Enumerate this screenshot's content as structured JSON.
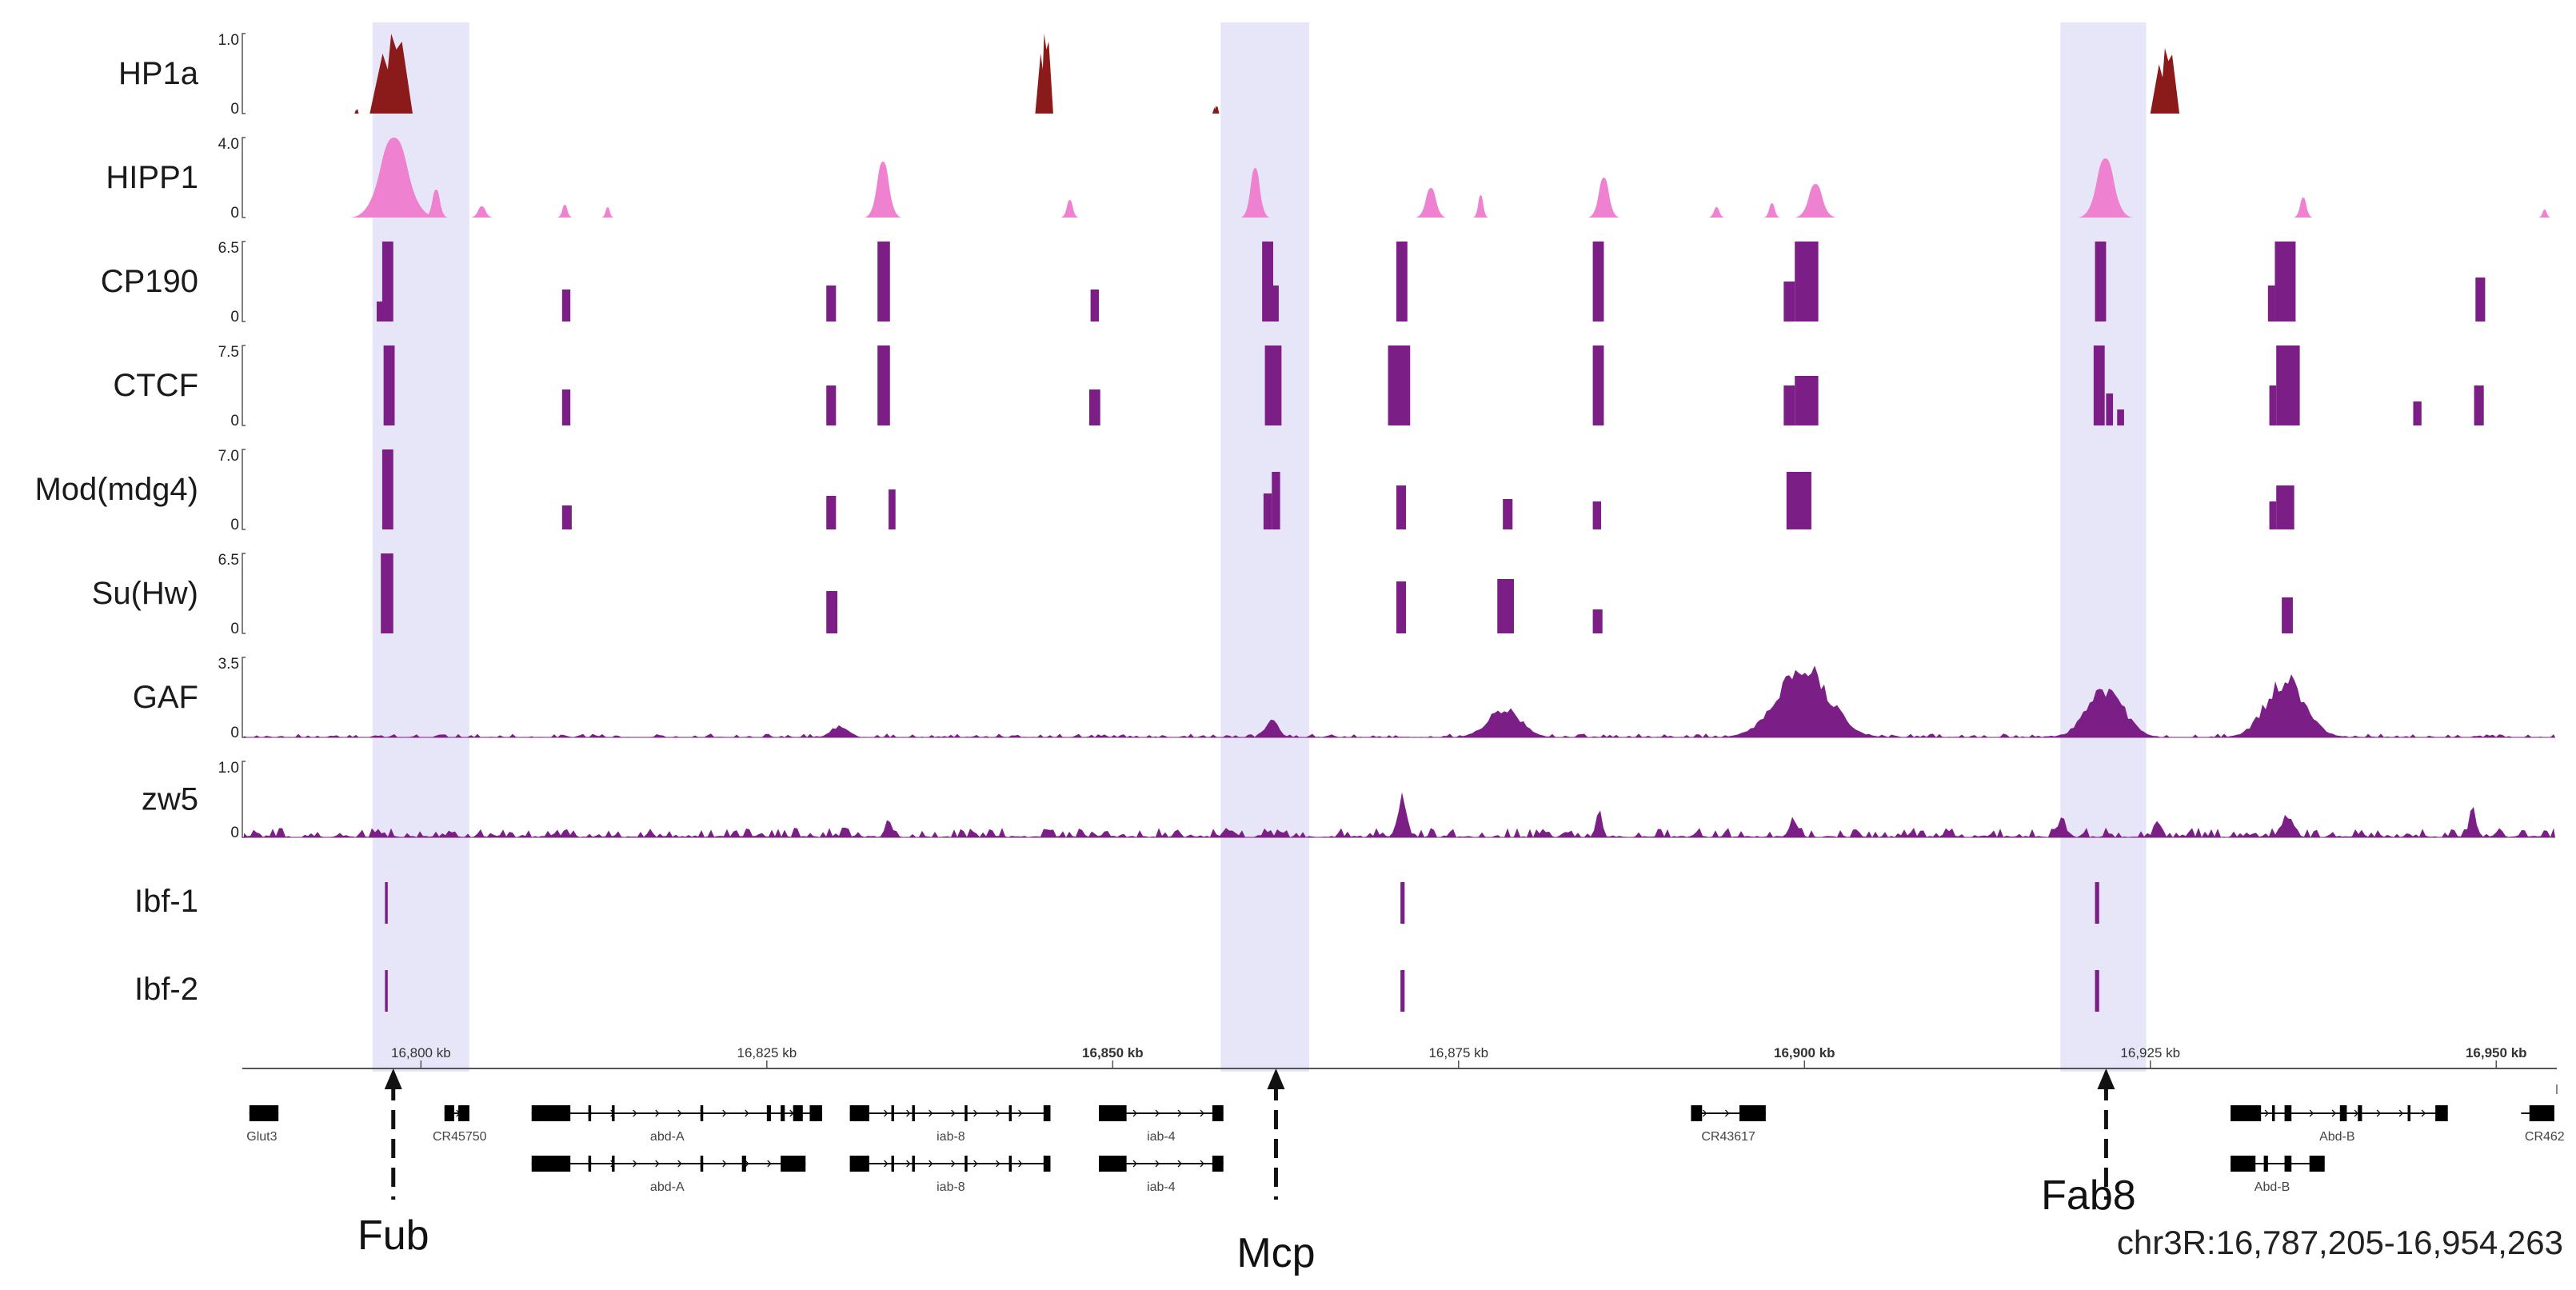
{
  "chart_data": {
    "type": "genome-browser",
    "chrom": "chr3R",
    "start": 16787205,
    "end": 16954263,
    "region_label": "chr3R:16,787,205-16,954,263",
    "colors": {
      "HP1a": "#8b1a1a",
      "HIPP1": "#ee82d0",
      "purple": "#7b1f86",
      "purple_light": "#9a4fb0",
      "highlight": "#c8c8f0"
    },
    "ruler": {
      "ticks": [
        {
          "pos": 16800000,
          "label": "16,800 kb",
          "bold": false
        },
        {
          "pos": 16825000,
          "label": "16,825 kb",
          "bold": false
        },
        {
          "pos": 16850000,
          "label": "16,850 kb",
          "bold": true
        },
        {
          "pos": 16875000,
          "label": "16,875 kb",
          "bold": false
        },
        {
          "pos": 16900000,
          "label": "16,900 kb",
          "bold": true
        },
        {
          "pos": 16925000,
          "label": "16,925 kb",
          "bold": false
        },
        {
          "pos": 16950000,
          "label": "16,950 kb",
          "bold": true
        }
      ]
    },
    "highlights": [
      {
        "name": "Fub",
        "start": 16796500,
        "end": 16803500,
        "arrow": 16798000
      },
      {
        "name": "Mcp",
        "start": 16857800,
        "end": 16864200,
        "arrow": 16861800
      },
      {
        "name": "Fab8",
        "start": 16918500,
        "end": 16924700,
        "arrow": 16921800
      }
    ],
    "tracks": [
      {
        "name": "HP1a",
        "max": "1.0",
        "min": "0",
        "style": "peaks",
        "color_key": "HP1a",
        "features": [
          [
            16796300,
            16799400,
            1.0,
            "spike"
          ],
          [
            16795200,
            16795500,
            0.06,
            "spike"
          ],
          [
            16844400,
            16845700,
            1.0,
            "spike"
          ],
          [
            16857200,
            16857700,
            0.1,
            "spike"
          ],
          [
            16925000,
            16927100,
            0.82,
            "spike"
          ]
        ]
      },
      {
        "name": "HIPP1",
        "max": "4.0",
        "min": "0",
        "style": "peaks",
        "color_key": "HIPP1",
        "features": [
          [
            16794800,
            16801300,
            1.0,
            "bell"
          ],
          [
            16800200,
            16802000,
            0.35,
            "bell"
          ],
          [
            16803500,
            16805300,
            0.14,
            "bell"
          ],
          [
            16809800,
            16811000,
            0.16,
            "bell"
          ],
          [
            16813000,
            16814000,
            0.13,
            "bell"
          ],
          [
            16832000,
            16834800,
            0.7,
            "bell"
          ],
          [
            16846200,
            16847600,
            0.22,
            "bell"
          ],
          [
            16859200,
            16861400,
            0.62,
            "bell"
          ],
          [
            16871800,
            16874200,
            0.37,
            "bell"
          ],
          [
            16876000,
            16877200,
            0.28,
            "bell"
          ],
          [
            16884300,
            16886700,
            0.5,
            "bell"
          ],
          [
            16893000,
            16894300,
            0.13,
            "bell"
          ],
          [
            16897000,
            16898300,
            0.18,
            "bell"
          ],
          [
            16899200,
            16902400,
            0.42,
            "bell"
          ],
          [
            16919700,
            16923800,
            0.74,
            "bell"
          ],
          [
            16935300,
            16936800,
            0.25,
            "bell"
          ],
          [
            16953000,
            16954000,
            0.1,
            "bell"
          ]
        ]
      },
      {
        "name": "CP190",
        "max": "6.5",
        "min": "0",
        "style": "bars",
        "color_key": "purple",
        "features": [
          [
            16797200,
            16798000,
            1.0
          ],
          [
            16796800,
            16797400,
            0.25
          ],
          [
            16810200,
            16810800,
            0.4
          ],
          [
            16829300,
            16830000,
            0.45
          ],
          [
            16833000,
            16833900,
            1.0
          ],
          [
            16848400,
            16849000,
            0.4
          ],
          [
            16860800,
            16861600,
            1.0
          ],
          [
            16861400,
            16862000,
            0.45
          ],
          [
            16870500,
            16871300,
            1.0
          ],
          [
            16884700,
            16885500,
            1.0
          ],
          [
            16898500,
            16899300,
            0.5
          ],
          [
            16899300,
            16901000,
            1.0
          ],
          [
            16921000,
            16921800,
            1.0
          ],
          [
            16933500,
            16934000,
            0.45
          ],
          [
            16934000,
            16935500,
            1.0
          ],
          [
            16948500,
            16949200,
            0.55
          ]
        ]
      },
      {
        "name": "CTCF",
        "max": "7.5",
        "min": "0",
        "style": "bars",
        "color_key": "purple",
        "features": [
          [
            16797300,
            16798100,
            1.0
          ],
          [
            16810200,
            16810800,
            0.45
          ],
          [
            16829300,
            16830000,
            0.5
          ],
          [
            16833000,
            16833900,
            1.0
          ],
          [
            16848300,
            16849100,
            0.45
          ],
          [
            16861000,
            16862200,
            1.0
          ],
          [
            16869900,
            16871500,
            1.0
          ],
          [
            16884700,
            16885500,
            1.0
          ],
          [
            16898500,
            16899300,
            0.5
          ],
          [
            16899300,
            16901000,
            0.62
          ],
          [
            16920900,
            16921700,
            1.0
          ],
          [
            16921800,
            16922300,
            0.4
          ],
          [
            16922600,
            16923100,
            0.2
          ],
          [
            16933600,
            16934100,
            0.5
          ],
          [
            16934100,
            16935800,
            1.0
          ],
          [
            16944000,
            16944600,
            0.3
          ],
          [
            16948400,
            16949100,
            0.5
          ]
        ]
      },
      {
        "name": "Mod(mdg4)",
        "max": "7.0",
        "min": "0",
        "style": "bars",
        "color_key": "purple",
        "features": [
          [
            16797200,
            16798000,
            1.0
          ],
          [
            16810200,
            16810900,
            0.3
          ],
          [
            16829300,
            16830000,
            0.42
          ],
          [
            16833800,
            16834300,
            0.5
          ],
          [
            16860900,
            16861500,
            0.45
          ],
          [
            16861500,
            16862100,
            0.72
          ],
          [
            16870500,
            16871200,
            0.55
          ],
          [
            16878200,
            16878900,
            0.38
          ],
          [
            16884700,
            16885300,
            0.35
          ],
          [
            16898700,
            16900500,
            0.72
          ],
          [
            16933600,
            16934100,
            0.35
          ],
          [
            16934100,
            16935400,
            0.55
          ]
        ]
      },
      {
        "name": "Su(Hw)",
        "max": "6.5",
        "min": "0",
        "style": "bars",
        "color_key": "purple",
        "features": [
          [
            16797100,
            16798000,
            1.0
          ],
          [
            16829300,
            16830100,
            0.53
          ],
          [
            16870500,
            16871200,
            0.65
          ],
          [
            16877800,
            16879000,
            0.68
          ],
          [
            16884700,
            16885400,
            0.3
          ],
          [
            16934500,
            16935300,
            0.45
          ]
        ]
      },
      {
        "name": "GAF",
        "max": "3.5",
        "min": "0",
        "style": "noise",
        "color_key": "purple",
        "baseline": 0.03,
        "features": [
          [
            16829000,
            16831500,
            0.17
          ],
          [
            16860500,
            16862500,
            0.25
          ],
          [
            16875800,
            16880800,
            0.4
          ],
          [
            16896000,
            16903800,
            1.0
          ],
          [
            16919000,
            16924500,
            0.7
          ],
          [
            16931800,
            16937800,
            0.83
          ]
        ]
      },
      {
        "name": "zw5",
        "max": "1.0",
        "min": "0",
        "style": "noise",
        "color_key": "purple",
        "baseline": 0.08,
        "features": [
          [
            16870200,
            16871600,
            0.6
          ],
          [
            16884700,
            16885600,
            0.4
          ],
          [
            16898600,
            16899800,
            0.3
          ],
          [
            16918000,
            16919200,
            0.3
          ],
          [
            16925000,
            16926000,
            0.3
          ],
          [
            16934000,
            16935800,
            0.35
          ],
          [
            16947800,
            16948800,
            0.5
          ],
          [
            16833300,
            16834300,
            0.28
          ]
        ]
      },
      {
        "name": "Ibf-1",
        "style": "ticks",
        "color_key": "purple",
        "features": [
          [
            16797400,
            16797600
          ],
          [
            16870800,
            16871100
          ],
          [
            16921000,
            16921300
          ]
        ]
      },
      {
        "name": "Ibf-2",
        "style": "ticks",
        "color_key": "purple",
        "features": [
          [
            16797400,
            16797600
          ],
          [
            16870800,
            16871100
          ],
          [
            16921000,
            16921300
          ]
        ]
      }
    ],
    "genes": [
      {
        "name": "Glut3",
        "row": 0,
        "start": 16787600,
        "end": 16789700,
        "exons": [
          [
            16787600,
            16789700
          ]
        ],
        "label_pos": 16788500
      },
      {
        "name": "CR45750",
        "row": 0,
        "start": 16801700,
        "end": 16803500,
        "exons": [
          [
            16801700,
            16802400
          ],
          [
            16802700,
            16803500
          ]
        ],
        "label_pos": 16802800
      },
      {
        "name": "abd-A",
        "row": 0,
        "start": 16808000,
        "end": 16829000,
        "exons": [
          [
            16808000,
            16810800
          ],
          [
            16812100,
            16812300
          ],
          [
            16813800,
            16814000
          ],
          [
            16820200,
            16820400
          ],
          [
            16825000,
            16825300
          ],
          [
            16826000,
            16826300
          ],
          [
            16826900,
            16827600
          ],
          [
            16828100,
            16829000
          ]
        ],
        "label_pos": 16817800
      },
      {
        "name": "abd-A",
        "row": 1,
        "start": 16808000,
        "end": 16827800,
        "exons": [
          [
            16808000,
            16810800
          ],
          [
            16812100,
            16812300
          ],
          [
            16813800,
            16814000
          ],
          [
            16820200,
            16820400
          ],
          [
            16823200,
            16823500
          ],
          [
            16826000,
            16827800
          ]
        ],
        "label_pos": 16817800
      },
      {
        "name": "iab-8",
        "row": 0,
        "start": 16831000,
        "end": 16845500,
        "exons": [
          [
            16831000,
            16832400
          ],
          [
            16834000,
            16834200
          ],
          [
            16835500,
            16835700
          ],
          [
            16839300,
            16839500
          ],
          [
            16842500,
            16842700
          ],
          [
            16845000,
            16845500
          ]
        ],
        "label_pos": 16838300
      },
      {
        "name": "iab-8",
        "row": 1,
        "start": 16831000,
        "end": 16845500,
        "exons": [
          [
            16831000,
            16832400
          ],
          [
            16834000,
            16834200
          ],
          [
            16835500,
            16835700
          ],
          [
            16839300,
            16839500
          ],
          [
            16842500,
            16842700
          ],
          [
            16845000,
            16845500
          ]
        ],
        "label_pos": 16838300
      },
      {
        "name": "iab-4",
        "row": 0,
        "start": 16849000,
        "end": 16858000,
        "exons": [
          [
            16849000,
            16851000
          ],
          [
            16857200,
            16858000
          ]
        ],
        "label_pos": 16853500
      },
      {
        "name": "iab-4",
        "row": 1,
        "start": 16849000,
        "end": 16858000,
        "exons": [
          [
            16849000,
            16851000
          ],
          [
            16857200,
            16858000
          ]
        ],
        "label_pos": 16853500
      },
      {
        "name": "CR43617",
        "row": 0,
        "start": 16891800,
        "end": 16897200,
        "exons": [
          [
            16891800,
            16892600
          ],
          [
            16895300,
            16897200
          ]
        ],
        "label_pos": 16894500
      },
      {
        "name": "Abd-B",
        "row": 0,
        "start": 16930800,
        "end": 16946500,
        "exons": [
          [
            16930800,
            16933000
          ],
          [
            16933800,
            16934000
          ],
          [
            16934700,
            16935200
          ],
          [
            16938700,
            16939200
          ],
          [
            16940000,
            16940300
          ],
          [
            16943600,
            16943800
          ],
          [
            16945600,
            16946500
          ]
        ],
        "label_pos": 16938500
      },
      {
        "name": "Abd-B",
        "row": 1,
        "start": 16930800,
        "end": 16937600,
        "exons": [
          [
            16930800,
            16932600
          ],
          [
            16933200,
            16933500
          ],
          [
            16934700,
            16935200
          ],
          [
            16936500,
            16937600
          ]
        ],
        "label_pos": 16933800
      },
      {
        "name": "CR462",
        "row": 0,
        "start": 16951800,
        "end": 16954200,
        "exons": [
          [
            16952400,
            16954200
          ]
        ],
        "label_pos": 16953500
      }
    ]
  }
}
